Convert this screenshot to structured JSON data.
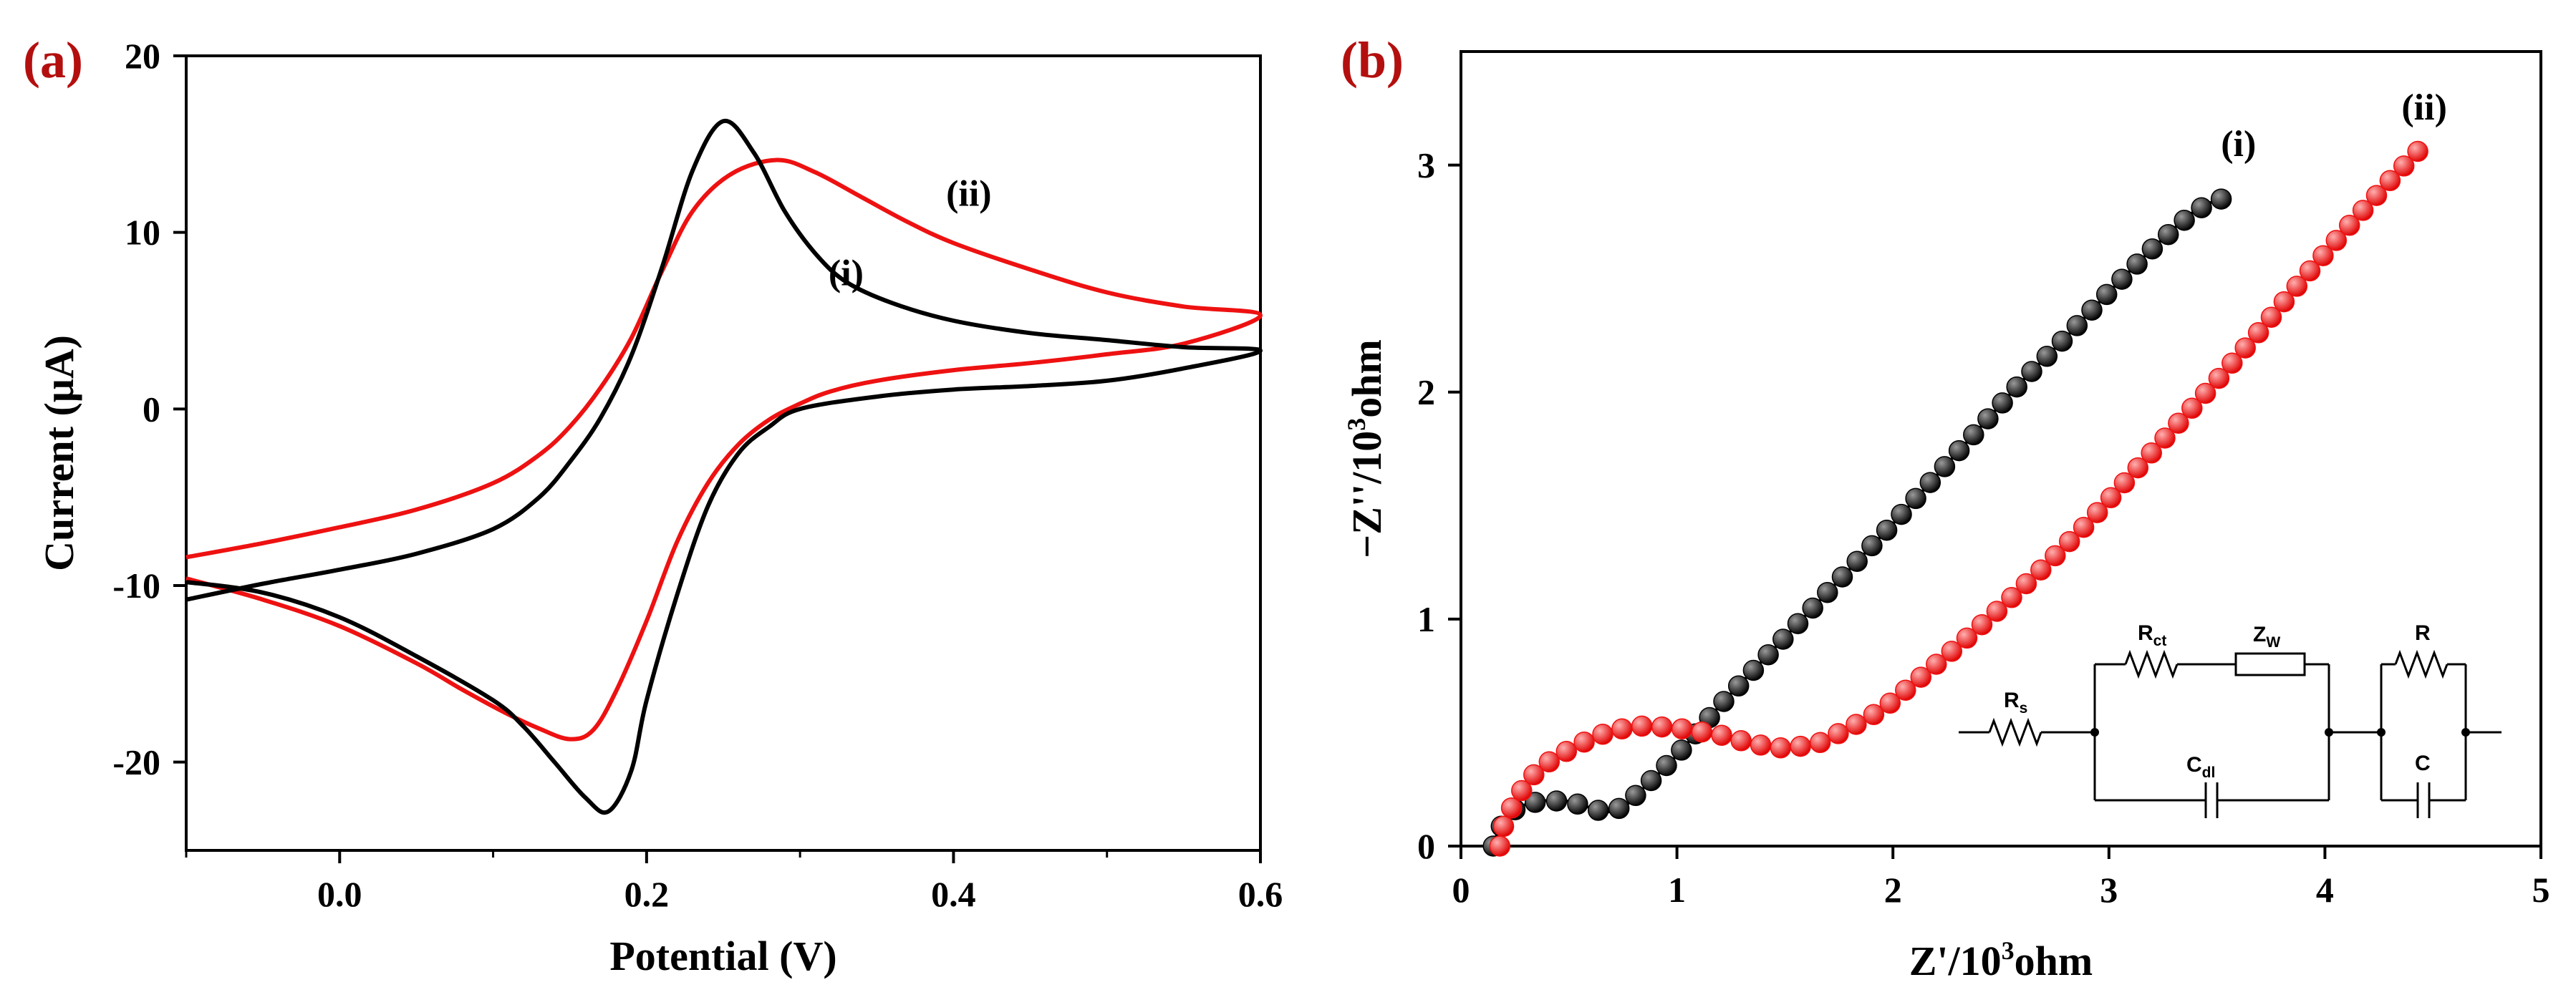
{
  "figure": {
    "panel_a_label": "(a)",
    "panel_b_label": "(b)"
  },
  "colors": {
    "series_i": "#000000",
    "series_ii": "#ee1111",
    "panel_label": "#b40f0f",
    "axis": "#000000"
  },
  "chart_data": [
    {
      "type": "line",
      "panel": "a",
      "title": "",
      "xlabel": "Potential (V)",
      "ylabel": "Current (μA)",
      "xlim": [
        -0.1,
        0.6
      ],
      "ylim": [
        -25,
        20
      ],
      "xticks": [
        0.0,
        0.2,
        0.4,
        0.6
      ],
      "xtick_labels": [
        "0.0",
        "0.2",
        "0.4",
        "0.6"
      ],
      "yticks": [
        20,
        10,
        0,
        -10,
        -20
      ],
      "ytick_labels": [
        "20",
        "10",
        "0",
        "-10",
        "-20"
      ],
      "grid": false,
      "series": [
        {
          "name": "(i)",
          "label": "(i)",
          "label_at": [
            0.33,
            7
          ],
          "forward": [
            [
              -0.1,
              -10.8
            ],
            [
              -0.05,
              -9.9
            ],
            [
              0.0,
              -9.1
            ],
            [
              0.05,
              -8.2
            ],
            [
              0.1,
              -6.8
            ],
            [
              0.13,
              -5.0
            ],
            [
              0.15,
              -3.0
            ],
            [
              0.17,
              -0.5
            ],
            [
              0.19,
              3.0
            ],
            [
              0.21,
              8.0
            ],
            [
              0.23,
              13.5
            ],
            [
              0.25,
              16.3
            ],
            [
              0.27,
              14.5
            ],
            [
              0.29,
              11.2
            ],
            [
              0.31,
              8.8
            ],
            [
              0.33,
              7.2
            ],
            [
              0.36,
              6.0
            ],
            [
              0.4,
              5.0
            ],
            [
              0.45,
              4.3
            ],
            [
              0.5,
              3.9
            ],
            [
              0.55,
              3.5
            ],
            [
              0.6,
              3.3
            ]
          ],
          "reverse": [
            [
              0.6,
              3.7
            ],
            [
              0.55,
              2.3
            ],
            [
              0.5,
              1.6
            ],
            [
              0.45,
              1.3
            ],
            [
              0.4,
              1.1
            ],
            [
              0.35,
              0.7
            ],
            [
              0.3,
              0.0
            ],
            [
              0.28,
              -1.0
            ],
            [
              0.26,
              -2.5
            ],
            [
              0.24,
              -5.5
            ],
            [
              0.22,
              -10.5
            ],
            [
              0.2,
              -16.5
            ],
            [
              0.19,
              -20.5
            ],
            [
              0.175,
              -22.8
            ],
            [
              0.16,
              -22.0
            ],
            [
              0.14,
              -20.0
            ],
            [
              0.12,
              -18.0
            ],
            [
              0.1,
              -16.5
            ],
            [
              0.05,
              -14.0
            ],
            [
              0.0,
              -11.8
            ],
            [
              -0.05,
              -10.4
            ],
            [
              -0.1,
              -9.8
            ]
          ]
        },
        {
          "name": "(ii)",
          "label": "(ii)",
          "label_at": [
            0.41,
            11.5
          ],
          "forward": [
            [
              -0.1,
              -8.4
            ],
            [
              -0.05,
              -7.6
            ],
            [
              0.0,
              -6.7
            ],
            [
              0.05,
              -5.7
            ],
            [
              0.1,
              -4.2
            ],
            [
              0.13,
              -2.6
            ],
            [
              0.15,
              -1.0
            ],
            [
              0.17,
              1.2
            ],
            [
              0.19,
              4.0
            ],
            [
              0.21,
              7.8
            ],
            [
              0.23,
              11.2
            ],
            [
              0.255,
              13.3
            ],
            [
              0.285,
              14.1
            ],
            [
              0.31,
              13.4
            ],
            [
              0.34,
              12.0
            ],
            [
              0.37,
              10.6
            ],
            [
              0.4,
              9.4
            ],
            [
              0.45,
              7.9
            ],
            [
              0.5,
              6.6
            ],
            [
              0.55,
              5.8
            ],
            [
              0.6,
              5.3
            ]
          ],
          "reverse": [
            [
              0.6,
              5.1
            ],
            [
              0.55,
              3.7
            ],
            [
              0.5,
              3.1
            ],
            [
              0.45,
              2.6
            ],
            [
              0.4,
              2.2
            ],
            [
              0.35,
              1.6
            ],
            [
              0.32,
              1.0
            ],
            [
              0.3,
              0.3
            ],
            [
              0.28,
              -0.6
            ],
            [
              0.26,
              -2.0
            ],
            [
              0.24,
              -4.2
            ],
            [
              0.22,
              -7.5
            ],
            [
              0.2,
              -12.0
            ],
            [
              0.18,
              -16.0
            ],
            [
              0.165,
              -18.2
            ],
            [
              0.15,
              -18.7
            ],
            [
              0.13,
              -18.1
            ],
            [
              0.11,
              -17.3
            ],
            [
              0.08,
              -15.9
            ],
            [
              0.05,
              -14.4
            ],
            [
              0.0,
              -12.3
            ],
            [
              -0.05,
              -10.8
            ],
            [
              -0.1,
              -9.6
            ]
          ]
        }
      ]
    },
    {
      "type": "scatter",
      "panel": "b",
      "title": "",
      "xlabel": "Z'/10³ohm",
      "ylabel": "−Z''/10³ohm",
      "xlim": [
        0,
        5
      ],
      "ylim": [
        0,
        3.5
      ],
      "xticks": [
        0,
        1,
        2,
        3,
        4,
        5
      ],
      "xtick_labels": [
        "0",
        "1",
        "2",
        "3",
        "4",
        "5"
      ],
      "yticks": [
        0,
        1,
        2,
        3
      ],
      "ytick_labels": [
        "0",
        "1",
        "2",
        "3"
      ],
      "grid": false,
      "series": [
        {
          "name": "(i)",
          "label": "(i)",
          "label_at": [
            3.6,
            3.04
          ],
          "control_points": [
            [
              0.15,
              0.0
            ],
            [
              0.18,
              0.08
            ],
            [
              0.25,
              0.16
            ],
            [
              0.35,
              0.195
            ],
            [
              0.48,
              0.2
            ],
            [
              0.58,
              0.175
            ],
            [
              0.66,
              0.15
            ],
            [
              0.75,
              0.17
            ],
            [
              0.85,
              0.26
            ],
            [
              1.0,
              0.4
            ],
            [
              1.2,
              0.62
            ],
            [
              1.4,
              0.82
            ],
            [
              1.6,
              1.02
            ],
            [
              1.8,
              1.22
            ],
            [
              2.0,
              1.42
            ],
            [
              2.2,
              1.63
            ],
            [
              2.4,
              1.84
            ],
            [
              2.6,
              2.05
            ],
            [
              2.8,
              2.24
            ],
            [
              3.0,
              2.44
            ],
            [
              3.2,
              2.63
            ],
            [
              3.4,
              2.8
            ],
            [
              3.52,
              2.85
            ]
          ],
          "count": 48
        },
        {
          "name": "(ii)",
          "label": "(ii)",
          "label_at": [
            4.46,
            3.2
          ],
          "control_points": [
            [
              0.18,
              0.0
            ],
            [
              0.2,
              0.1
            ],
            [
              0.25,
              0.2
            ],
            [
              0.32,
              0.3
            ],
            [
              0.42,
              0.38
            ],
            [
              0.55,
              0.45
            ],
            [
              0.7,
              0.51
            ],
            [
              0.85,
              0.53
            ],
            [
              1.0,
              0.52
            ],
            [
              1.2,
              0.49
            ],
            [
              1.35,
              0.45
            ],
            [
              1.5,
              0.43
            ],
            [
              1.65,
              0.45
            ],
            [
              1.8,
              0.52
            ],
            [
              1.95,
              0.6
            ],
            [
              2.1,
              0.72
            ],
            [
              2.3,
              0.88
            ],
            [
              2.5,
              1.05
            ],
            [
              2.7,
              1.23
            ],
            [
              2.9,
              1.42
            ],
            [
              3.1,
              1.63
            ],
            [
              3.3,
              1.84
            ],
            [
              3.5,
              2.05
            ],
            [
              3.7,
              2.27
            ],
            [
              3.9,
              2.5
            ],
            [
              4.1,
              2.72
            ],
            [
              4.3,
              2.93
            ],
            [
              4.43,
              3.06
            ]
          ],
          "count": 62
        }
      ],
      "inset_circuit": {
        "components": [
          "Rs",
          "Rct",
          "Zw",
          "Cdl",
          "R",
          "C"
        ],
        "labels": {
          "Rs": {
            "main": "R",
            "sub": "s"
          },
          "Rct": {
            "main": "R",
            "sub": "ct"
          },
          "Zw": {
            "main": "Z",
            "sub": "W"
          },
          "Cdl": {
            "main": "C",
            "sub": "dl"
          },
          "R": {
            "main": "R",
            "sub": ""
          },
          "C": {
            "main": "C",
            "sub": ""
          }
        }
      }
    }
  ]
}
